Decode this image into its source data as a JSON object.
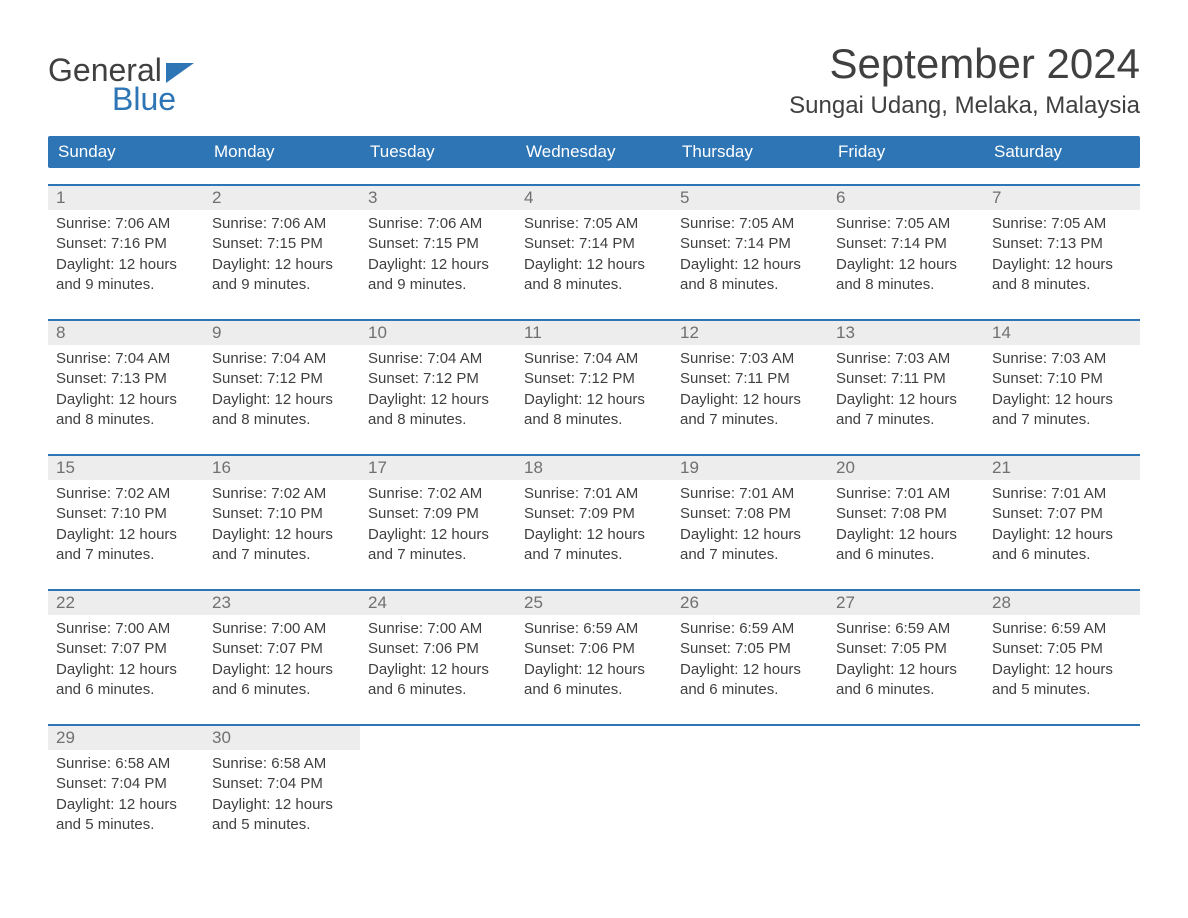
{
  "logo": {
    "top": "General",
    "bottom": "Blue"
  },
  "title": "September 2024",
  "location": "Sungai Udang, Melaka, Malaysia",
  "day_headers": [
    "Sunday",
    "Monday",
    "Tuesday",
    "Wednesday",
    "Thursday",
    "Friday",
    "Saturday"
  ],
  "colors": {
    "header_bg": "#2e75b6",
    "header_text": "#ffffff",
    "week_border": "#2e75b6",
    "day_number_bg": "#ededed",
    "day_number_text": "#707070",
    "body_text": "#404040",
    "logo_blue": "#2e75b6",
    "background": "#ffffff"
  },
  "fonts": {
    "title_size_pt": 32,
    "location_size_pt": 18,
    "day_header_size_pt": 13,
    "day_number_size_pt": 13,
    "content_size_pt": 11
  },
  "weeks": [
    [
      {
        "day": "1",
        "sunrise": "Sunrise: 7:06 AM",
        "sunset": "Sunset: 7:16 PM",
        "daylight1": "Daylight: 12 hours",
        "daylight2": "and 9 minutes."
      },
      {
        "day": "2",
        "sunrise": "Sunrise: 7:06 AM",
        "sunset": "Sunset: 7:15 PM",
        "daylight1": "Daylight: 12 hours",
        "daylight2": "and 9 minutes."
      },
      {
        "day": "3",
        "sunrise": "Sunrise: 7:06 AM",
        "sunset": "Sunset: 7:15 PM",
        "daylight1": "Daylight: 12 hours",
        "daylight2": "and 9 minutes."
      },
      {
        "day": "4",
        "sunrise": "Sunrise: 7:05 AM",
        "sunset": "Sunset: 7:14 PM",
        "daylight1": "Daylight: 12 hours",
        "daylight2": "and 8 minutes."
      },
      {
        "day": "5",
        "sunrise": "Sunrise: 7:05 AM",
        "sunset": "Sunset: 7:14 PM",
        "daylight1": "Daylight: 12 hours",
        "daylight2": "and 8 minutes."
      },
      {
        "day": "6",
        "sunrise": "Sunrise: 7:05 AM",
        "sunset": "Sunset: 7:14 PM",
        "daylight1": "Daylight: 12 hours",
        "daylight2": "and 8 minutes."
      },
      {
        "day": "7",
        "sunrise": "Sunrise: 7:05 AM",
        "sunset": "Sunset: 7:13 PM",
        "daylight1": "Daylight: 12 hours",
        "daylight2": "and 8 minutes."
      }
    ],
    [
      {
        "day": "8",
        "sunrise": "Sunrise: 7:04 AM",
        "sunset": "Sunset: 7:13 PM",
        "daylight1": "Daylight: 12 hours",
        "daylight2": "and 8 minutes."
      },
      {
        "day": "9",
        "sunrise": "Sunrise: 7:04 AM",
        "sunset": "Sunset: 7:12 PM",
        "daylight1": "Daylight: 12 hours",
        "daylight2": "and 8 minutes."
      },
      {
        "day": "10",
        "sunrise": "Sunrise: 7:04 AM",
        "sunset": "Sunset: 7:12 PM",
        "daylight1": "Daylight: 12 hours",
        "daylight2": "and 8 minutes."
      },
      {
        "day": "11",
        "sunrise": "Sunrise: 7:04 AM",
        "sunset": "Sunset: 7:12 PM",
        "daylight1": "Daylight: 12 hours",
        "daylight2": "and 8 minutes."
      },
      {
        "day": "12",
        "sunrise": "Sunrise: 7:03 AM",
        "sunset": "Sunset: 7:11 PM",
        "daylight1": "Daylight: 12 hours",
        "daylight2": "and 7 minutes."
      },
      {
        "day": "13",
        "sunrise": "Sunrise: 7:03 AM",
        "sunset": "Sunset: 7:11 PM",
        "daylight1": "Daylight: 12 hours",
        "daylight2": "and 7 minutes."
      },
      {
        "day": "14",
        "sunrise": "Sunrise: 7:03 AM",
        "sunset": "Sunset: 7:10 PM",
        "daylight1": "Daylight: 12 hours",
        "daylight2": "and 7 minutes."
      }
    ],
    [
      {
        "day": "15",
        "sunrise": "Sunrise: 7:02 AM",
        "sunset": "Sunset: 7:10 PM",
        "daylight1": "Daylight: 12 hours",
        "daylight2": "and 7 minutes."
      },
      {
        "day": "16",
        "sunrise": "Sunrise: 7:02 AM",
        "sunset": "Sunset: 7:10 PM",
        "daylight1": "Daylight: 12 hours",
        "daylight2": "and 7 minutes."
      },
      {
        "day": "17",
        "sunrise": "Sunrise: 7:02 AM",
        "sunset": "Sunset: 7:09 PM",
        "daylight1": "Daylight: 12 hours",
        "daylight2": "and 7 minutes."
      },
      {
        "day": "18",
        "sunrise": "Sunrise: 7:01 AM",
        "sunset": "Sunset: 7:09 PM",
        "daylight1": "Daylight: 12 hours",
        "daylight2": "and 7 minutes."
      },
      {
        "day": "19",
        "sunrise": "Sunrise: 7:01 AM",
        "sunset": "Sunset: 7:08 PM",
        "daylight1": "Daylight: 12 hours",
        "daylight2": "and 7 minutes."
      },
      {
        "day": "20",
        "sunrise": "Sunrise: 7:01 AM",
        "sunset": "Sunset: 7:08 PM",
        "daylight1": "Daylight: 12 hours",
        "daylight2": "and 6 minutes."
      },
      {
        "day": "21",
        "sunrise": "Sunrise: 7:01 AM",
        "sunset": "Sunset: 7:07 PM",
        "daylight1": "Daylight: 12 hours",
        "daylight2": "and 6 minutes."
      }
    ],
    [
      {
        "day": "22",
        "sunrise": "Sunrise: 7:00 AM",
        "sunset": "Sunset: 7:07 PM",
        "daylight1": "Daylight: 12 hours",
        "daylight2": "and 6 minutes."
      },
      {
        "day": "23",
        "sunrise": "Sunrise: 7:00 AM",
        "sunset": "Sunset: 7:07 PM",
        "daylight1": "Daylight: 12 hours",
        "daylight2": "and 6 minutes."
      },
      {
        "day": "24",
        "sunrise": "Sunrise: 7:00 AM",
        "sunset": "Sunset: 7:06 PM",
        "daylight1": "Daylight: 12 hours",
        "daylight2": "and 6 minutes."
      },
      {
        "day": "25",
        "sunrise": "Sunrise: 6:59 AM",
        "sunset": "Sunset: 7:06 PM",
        "daylight1": "Daylight: 12 hours",
        "daylight2": "and 6 minutes."
      },
      {
        "day": "26",
        "sunrise": "Sunrise: 6:59 AM",
        "sunset": "Sunset: 7:05 PM",
        "daylight1": "Daylight: 12 hours",
        "daylight2": "and 6 minutes."
      },
      {
        "day": "27",
        "sunrise": "Sunrise: 6:59 AM",
        "sunset": "Sunset: 7:05 PM",
        "daylight1": "Daylight: 12 hours",
        "daylight2": "and 6 minutes."
      },
      {
        "day": "28",
        "sunrise": "Sunrise: 6:59 AM",
        "sunset": "Sunset: 7:05 PM",
        "daylight1": "Daylight: 12 hours",
        "daylight2": "and 5 minutes."
      }
    ],
    [
      {
        "day": "29",
        "sunrise": "Sunrise: 6:58 AM",
        "sunset": "Sunset: 7:04 PM",
        "daylight1": "Daylight: 12 hours",
        "daylight2": "and 5 minutes."
      },
      {
        "day": "30",
        "sunrise": "Sunrise: 6:58 AM",
        "sunset": "Sunset: 7:04 PM",
        "daylight1": "Daylight: 12 hours",
        "daylight2": "and 5 minutes."
      },
      null,
      null,
      null,
      null,
      null
    ]
  ]
}
